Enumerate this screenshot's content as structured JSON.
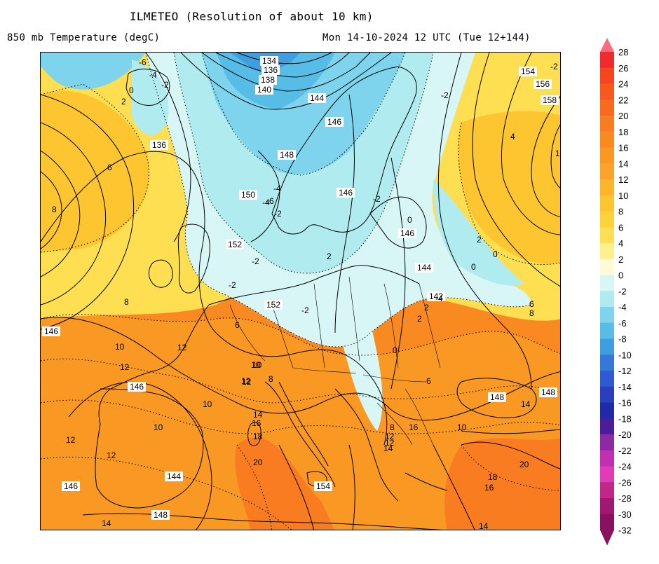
{
  "header": {
    "title": "ILMETEO (Resolution of about 10 km)",
    "field": "850 mb Temperature (degC)",
    "valid": "Mon 14-10-2024 12 UTC (Tue 12+144)"
  },
  "legend": {
    "levels": [
      "28",
      "26",
      "24",
      "22",
      "20",
      "18",
      "16",
      "14",
      "12",
      "10",
      "8",
      "6",
      "4",
      "2",
      "0",
      "-2",
      "-4",
      "-6",
      "-8",
      "-10",
      "-12",
      "-14",
      "-16",
      "-18",
      "-20",
      "-22",
      "-24",
      "-26",
      "-28",
      "-30",
      "-32"
    ],
    "colors": [
      "#ff6a80",
      "#ee2c2c",
      "#f6461e",
      "#f8581e",
      "#f96a1e",
      "#f97c20",
      "#f98a22",
      "#fa9824",
      "#fca32a",
      "#fdb52e",
      "#fdc530",
      "#fed33a",
      "#fedf52",
      "#fff08c",
      "#fdfbd4",
      "#d8f6f6",
      "#b0ebef",
      "#7ed4ec",
      "#58bde6",
      "#3e9ee0",
      "#3478d8",
      "#2f5ad0",
      "#2a3ec0",
      "#1e2aa8",
      "#4a1e9a",
      "#8c2aa6",
      "#c030b0",
      "#e03cb8",
      "#c02888",
      "#a01870",
      "#8a1060"
    ]
  },
  "map": {
    "isohypse_labels": [
      "134",
      "136",
      "138",
      "140",
      "144",
      "146",
      "148",
      "150",
      "152",
      "142",
      "154",
      "156",
      "158",
      "136",
      "146",
      "146",
      "146",
      "144",
      "148",
      "148",
      "152",
      "152",
      "154",
      "144",
      "146",
      "148",
      "146",
      "148"
    ],
    "temperature_labels": [
      "-6",
      "-4",
      "-2",
      "0",
      "2",
      "-2",
      "-4",
      "-6",
      "-4",
      "-2",
      "-2",
      "-2",
      "-2",
      "0",
      "2",
      "4",
      "6",
      "8",
      "8",
      "10",
      "10",
      "12",
      "12",
      "10",
      "12",
      "10",
      "12",
      "14",
      "16",
      "18",
      "20",
      "10",
      "12",
      "14",
      "20",
      "18",
      "16",
      "14",
      "12",
      "14",
      "16",
      "12",
      "10",
      "14",
      "8",
      "6",
      "2",
      "0",
      "2",
      "-4",
      "-2",
      "1",
      "0",
      "2",
      "0",
      "6",
      "8",
      "-2",
      "12",
      "6",
      "8"
    ]
  }
}
